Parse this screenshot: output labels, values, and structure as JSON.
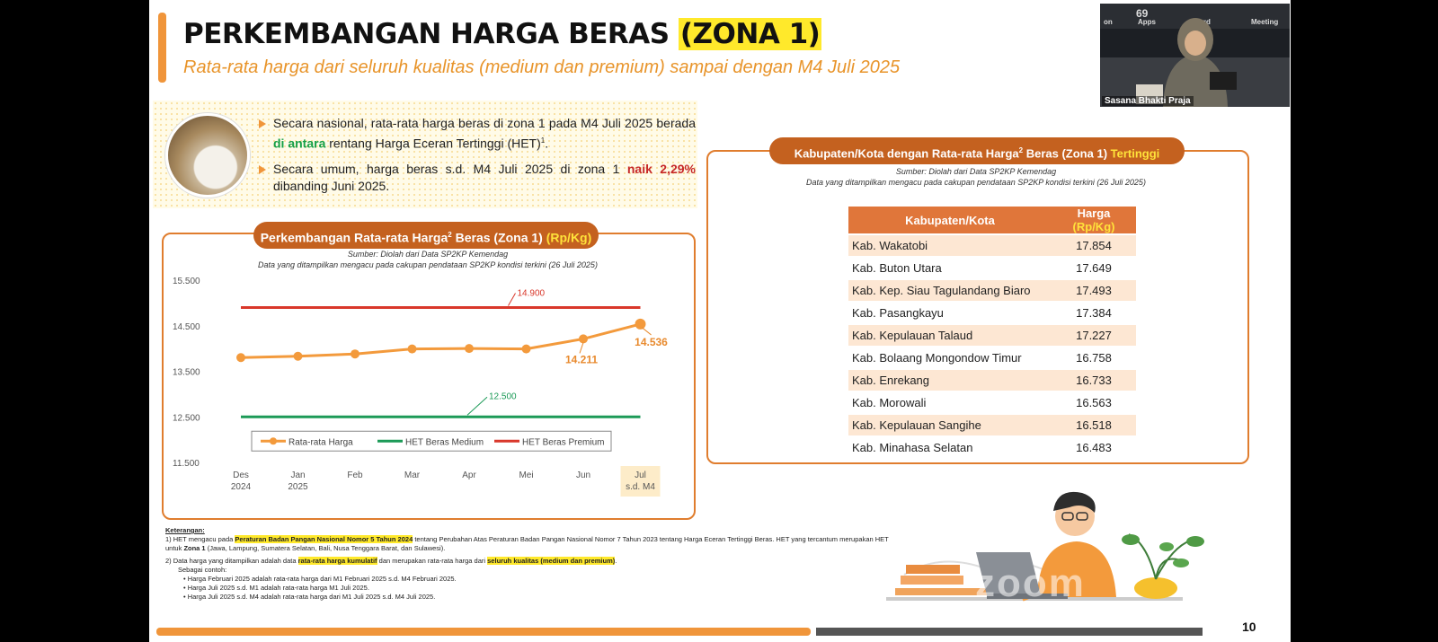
{
  "slide": {
    "title_main": "PERKEMBANGAN HARGA BERAS ",
    "title_highlight": "(ZONA 1)",
    "subtitle": "Rata-rata harga dari seluruh kualitas (medium dan premium) sampai dengan M4 Juli 2025",
    "page_number": "10"
  },
  "summary": {
    "bullet1_a": "Secara nasional, rata-rata harga beras di zona 1 pada M4 Juli 2025 berada ",
    "bullet1_green": "di antara",
    "bullet1_b": " rentang Harga Eceran Tertinggi (HET)",
    "bullet1_sup": "1",
    "bullet1_end": ".",
    "bullet2_a": "Secara umum, harga beras s.d. M4 Juli 2025 di zona 1 ",
    "bullet2_red": "naik 2,29%",
    "bullet2_b": " dibanding Juni 2025."
  },
  "chart_panel": {
    "title_a": "Perkembangan Rata-rata Harga",
    "title_sup": "2",
    "title_b": " Beras (Zona 1) ",
    "title_unit": "(Rp/Kg)",
    "source": "Sumber: Diolah dari Data SP2KP Kemendag",
    "note": "Data yang ditampilkan mengacu pada cakupan pendataan SP2KP kondisi terkini (26 Juli 2025)"
  },
  "chart_data": {
    "type": "line",
    "categories": [
      [
        "Des",
        "2024"
      ],
      [
        "Jan",
        "2025"
      ],
      [
        "Feb",
        ""
      ],
      [
        "Mar",
        ""
      ],
      [
        "Apr",
        ""
      ],
      [
        "Mei",
        ""
      ],
      [
        "Jun",
        ""
      ],
      [
        "Jul",
        "s.d. M4"
      ]
    ],
    "series": [
      {
        "name": "Rata-rata Harga",
        "color": "#f39a3c",
        "values": [
          13800,
          13830,
          13880,
          13990,
          14000,
          13990,
          14211,
          14536
        ]
      },
      {
        "name": "HET Beras Medium",
        "color": "#1b9a57",
        "values": [
          12500,
          12500,
          12500,
          12500,
          12500,
          12500,
          12500,
          12500
        ]
      },
      {
        "name": "HET Beras Premium",
        "color": "#d9372a",
        "values": [
          14900,
          14900,
          14900,
          14900,
          14900,
          14900,
          14900,
          14900
        ]
      }
    ],
    "yticks": [
      "11.500",
      "12.500",
      "13.500",
      "14.500",
      "15.500"
    ],
    "ylim": [
      11500,
      15500
    ],
    "annotations": [
      "14.900",
      "12.500",
      "14.211",
      "14.536"
    ],
    "legend_position": "bottom-inside"
  },
  "table_panel": {
    "title_a": "Kabupaten/Kota dengan Rata-rata Harga",
    "title_sup": "2",
    "title_b": " Beras (Zona 1) ",
    "title_hl": "Tertinggi",
    "source": "Sumber: Diolah dari Data SP2KP Kemendag",
    "note": "Data yang ditampilkan mengacu pada cakupan pendataan SP2KP kondisi terkini (26 Juli 2025)",
    "col_name": "Kabupaten/Kota",
    "col_price_a": "Harga ",
    "col_price_unit": "(Rp/Kg)",
    "rows": [
      {
        "name": "Kab. Wakatobi",
        "price": "17.854"
      },
      {
        "name": "Kab. Buton Utara",
        "price": "17.649"
      },
      {
        "name": "Kab. Kep. Siau Tagulandang Biaro",
        "price": "17.493"
      },
      {
        "name": "Kab. Pasangkayu",
        "price": "17.384"
      },
      {
        "name": "Kab. Kepulauan Talaud",
        "price": "17.227"
      },
      {
        "name": "Kab. Bolaang Mongondow Timur",
        "price": "16.758"
      },
      {
        "name": "Kab. Enrekang",
        "price": "16.733"
      },
      {
        "name": "Kab. Morowali",
        "price": "16.563"
      },
      {
        "name": "Kab. Kepulauan Sangihe",
        "price": "16.518"
      },
      {
        "name": "Kab. Minahasa Selatan",
        "price": "16.483"
      }
    ]
  },
  "notes": {
    "heading": "Keterangan:",
    "n1_a": "1)  HET mengacu pada ",
    "n1_hl": "Peraturan Badan Pangan Nasional Nomor 5 Tahun 2024",
    "n1_b": " tentang Perubahan Atas Peraturan Badan Pangan Nasional Nomor 7 Tahun 2023 tentang Harga Eceran Tertinggi Beras. HET yang tercantum merupakan HET untuk ",
    "n1_bold": "Zona 1",
    "n1_c": " (Jawa, Lampung, Sumatera Selatan, Bali, Nusa Tenggara Barat, dan Sulawesi).",
    "n2_a": "2)  Data harga yang ditampilkan adalah data ",
    "n2_hl1": "rata-rata harga kumulatif",
    "n2_b": " dan merupakan rata-rata harga dari ",
    "n2_hl2": "seluruh kualitas (medium dan premium)",
    "n2_c": ".",
    "n2_sub": "Sebagai contoh:",
    "ex1": "Harga Februari 2025 adalah rata-rata harga dari M1 Februari 2025 s.d. M4 Februari 2025.",
    "ex2": "Harga Juli 2025 s.d. M1 adalah rata-rata harga M1 Juli 2025.",
    "ex3": "Harga Juli 2025 s.d. M4 adalah rata-rata harga dari M1 Juli 2025 s.d. M4 Juli 2025."
  },
  "webcam": {
    "label": "Sasana Bhakti Praja",
    "top_a": "on",
    "top_b": "Apps",
    "top_c": "ord",
    "top_d": "Meeting",
    "counter": "69"
  },
  "watermark": "zoom"
}
